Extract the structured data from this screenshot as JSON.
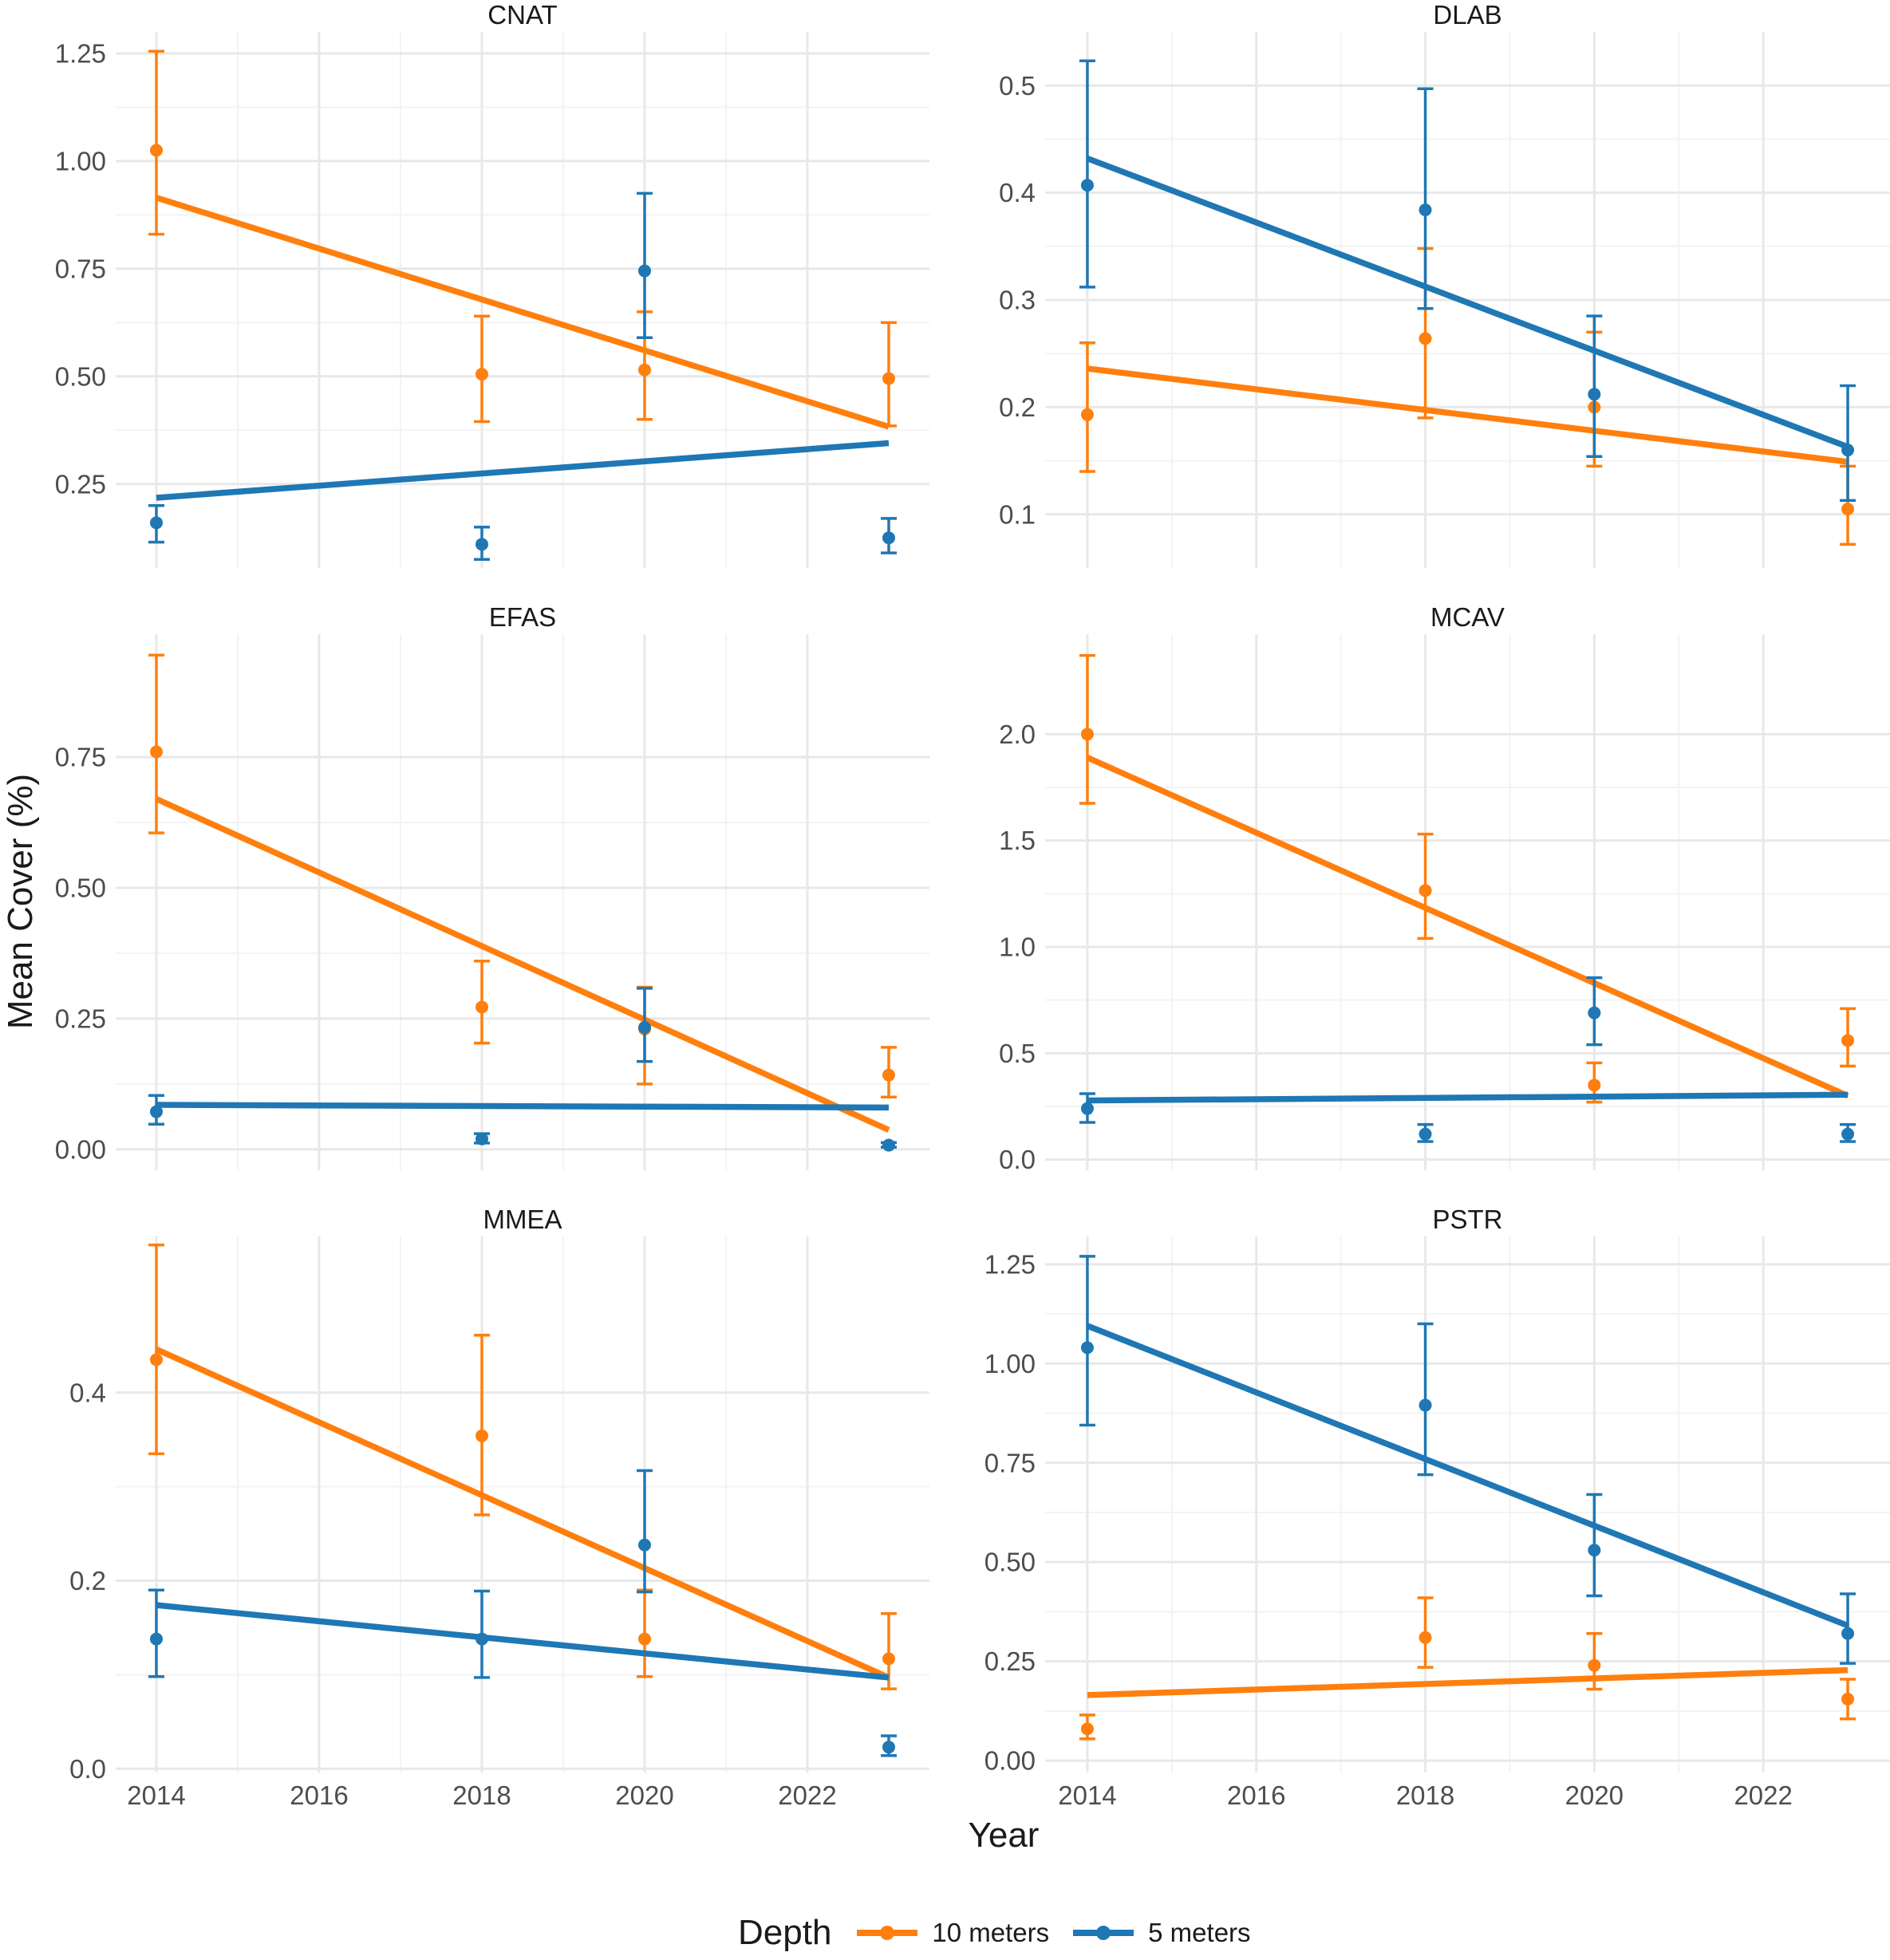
{
  "chart_data": {
    "type": "line",
    "layout": "faceted 3x2 small multiples",
    "xlabel": "Year",
    "ylabel": "Mean Cover (%)",
    "x_ticks": [
      2014,
      2016,
      2018,
      2020,
      2022
    ],
    "x_range": [
      2013.5,
      2023.5
    ],
    "legend": {
      "title": "Depth",
      "position": "bottom",
      "items": [
        {
          "label": "10 meters",
          "color": "#ff7f0e"
        },
        {
          "label": "5 meters",
          "color": "#1f77b4"
        }
      ]
    },
    "panels": [
      {
        "title": "CNAT",
        "ylim": [
          0.055,
          1.3
        ],
        "y_ticks": [
          0.25,
          0.5,
          0.75,
          1.0,
          1.25
        ],
        "y_tick_labels": [
          "0.25",
          "0.50",
          "0.75",
          "1.00",
          "1.25"
        ],
        "series": [
          {
            "name": "10 meters",
            "x": [
              2014,
              2018,
              2020,
              2023
            ],
            "mean": [
              1.025,
              0.505,
              0.515,
              0.495
            ],
            "lower": [
              0.83,
              0.395,
              0.4,
              0.385
            ],
            "upper": [
              1.255,
              0.64,
              0.65,
              0.625
            ],
            "trend": [
              0.915,
              0.383
            ]
          },
          {
            "name": "5 meters",
            "x": [
              2014,
              2018,
              2020,
              2023
            ],
            "mean": [
              0.16,
              0.11,
              0.745,
              0.125
            ],
            "lower": [
              0.115,
              0.075,
              0.59,
              0.09
            ],
            "upper": [
              0.2,
              0.15,
              0.925,
              0.17
            ],
            "trend": [
              0.218,
              0.345
            ]
          }
        ]
      },
      {
        "title": "DLAB",
        "ylim": [
          0.05,
          0.55
        ],
        "y_ticks": [
          0.1,
          0.2,
          0.3,
          0.4,
          0.5
        ],
        "y_tick_labels": [
          "0.1",
          "0.2",
          "0.3",
          "0.4",
          "0.5"
        ],
        "series": [
          {
            "name": "10 meters",
            "x": [
              2014,
              2018,
              2020,
              2023
            ],
            "mean": [
              0.193,
              0.264,
              0.2,
              0.105
            ],
            "lower": [
              0.14,
              0.19,
              0.145,
              0.072
            ],
            "upper": [
              0.26,
              0.348,
              0.27,
              0.145
            ],
            "trend": [
              0.236,
              0.149
            ]
          },
          {
            "name": "5 meters",
            "x": [
              2014,
              2018,
              2020,
              2023
            ],
            "mean": [
              0.407,
              0.384,
              0.212,
              0.16
            ],
            "lower": [
              0.312,
              0.292,
              0.154,
              0.113
            ],
            "upper": [
              0.523,
              0.497,
              0.285,
              0.22
            ],
            "trend": [
              0.432,
              0.163
            ]
          }
        ]
      },
      {
        "title": "EFAS",
        "ylim": [
          -0.04,
          0.985
        ],
        "y_ticks": [
          0.0,
          0.25,
          0.5,
          0.75
        ],
        "y_tick_labels": [
          "0.00",
          "0.25",
          "0.50",
          "0.75"
        ],
        "series": [
          {
            "name": "10 meters",
            "x": [
              2014,
              2018,
              2020,
              2023
            ],
            "mean": [
              0.76,
              0.272,
              0.23,
              0.142
            ],
            "lower": [
              0.605,
              0.203,
              0.125,
              0.1
            ],
            "upper": [
              0.945,
              0.36,
              0.31,
              0.195
            ],
            "trend": [
              0.67,
              0.037
            ]
          },
          {
            "name": "5 meters",
            "x": [
              2014,
              2018,
              2020,
              2023
            ],
            "mean": [
              0.072,
              0.02,
              0.233,
              0.008
            ],
            "lower": [
              0.048,
              0.012,
              0.168,
              0.004
            ],
            "upper": [
              0.103,
              0.03,
              0.308,
              0.013
            ],
            "trend": [
              0.085,
              0.08
            ]
          }
        ]
      },
      {
        "title": "MCAV",
        "ylim": [
          -0.05,
          2.47
        ],
        "y_ticks": [
          0.0,
          0.5,
          1.0,
          1.5,
          2.0
        ],
        "y_tick_labels": [
          "0.0",
          "0.5",
          "1.0",
          "1.5",
          "2.0"
        ],
        "series": [
          {
            "name": "10 meters",
            "x": [
              2014,
              2018,
              2020,
              2023
            ],
            "mean": [
              2.0,
              1.265,
              0.35,
              0.56
            ],
            "lower": [
              1.675,
              1.04,
              0.27,
              0.44
            ],
            "upper": [
              2.37,
              1.53,
              0.455,
              0.71
            ],
            "trend": [
              1.89,
              0.3
            ]
          },
          {
            "name": "5 meters",
            "x": [
              2014,
              2018,
              2020,
              2023
            ],
            "mean": [
              0.24,
              0.12,
              0.69,
              0.12
            ],
            "lower": [
              0.175,
              0.085,
              0.54,
              0.085
            ],
            "upper": [
              0.31,
              0.165,
              0.855,
              0.165
            ],
            "trend": [
              0.278,
              0.305
            ]
          }
        ]
      },
      {
        "title": "MMEA",
        "ylim": [
          -0.004,
          0.566
        ],
        "y_ticks": [
          0.0,
          0.2,
          0.4
        ],
        "y_tick_labels": [
          "0.0",
          "0.2",
          "0.4"
        ],
        "series": [
          {
            "name": "10 meters",
            "x": [
              2014,
              2018,
              2020,
              2023
            ],
            "mean": [
              0.435,
              0.354,
              0.138,
              0.117
            ],
            "lower": [
              0.335,
              0.27,
              0.098,
              0.085
            ],
            "upper": [
              0.557,
              0.461,
              0.19,
              0.165
            ],
            "trend": [
              0.446,
              0.097
            ]
          },
          {
            "name": "5 meters",
            "x": [
              2014,
              2018,
              2020,
              2023
            ],
            "mean": [
              0.138,
              0.138,
              0.238,
              0.023
            ],
            "lower": [
              0.098,
              0.097,
              0.188,
              0.014
            ],
            "upper": [
              0.19,
              0.189,
              0.317,
              0.035
            ],
            "trend": [
              0.174,
              0.097
            ]
          }
        ]
      },
      {
        "title": "PSTR",
        "ylim": [
          -0.03,
          1.32
        ],
        "y_ticks": [
          0.0,
          0.25,
          0.5,
          0.75,
          1.0,
          1.25
        ],
        "y_tick_labels": [
          "0.00",
          "0.25",
          "0.50",
          "0.75",
          "1.00",
          "1.25"
        ],
        "series": [
          {
            "name": "10 meters",
            "x": [
              2014,
              2018,
              2020,
              2023
            ],
            "mean": [
              0.08,
              0.31,
              0.24,
              0.155
            ],
            "lower": [
              0.055,
              0.235,
              0.18,
              0.105
            ],
            "upper": [
              0.115,
              0.41,
              0.32,
              0.205
            ],
            "trend": [
              0.165,
              0.228
            ]
          },
          {
            "name": "5 meters",
            "x": [
              2014,
              2018,
              2020,
              2023
            ],
            "mean": [
              1.04,
              0.895,
              0.53,
              0.32
            ],
            "lower": [
              0.845,
              0.72,
              0.415,
              0.245
            ],
            "upper": [
              1.27,
              1.1,
              0.67,
              0.42
            ],
            "trend": [
              1.095,
              0.34
            ]
          }
        ]
      }
    ]
  }
}
